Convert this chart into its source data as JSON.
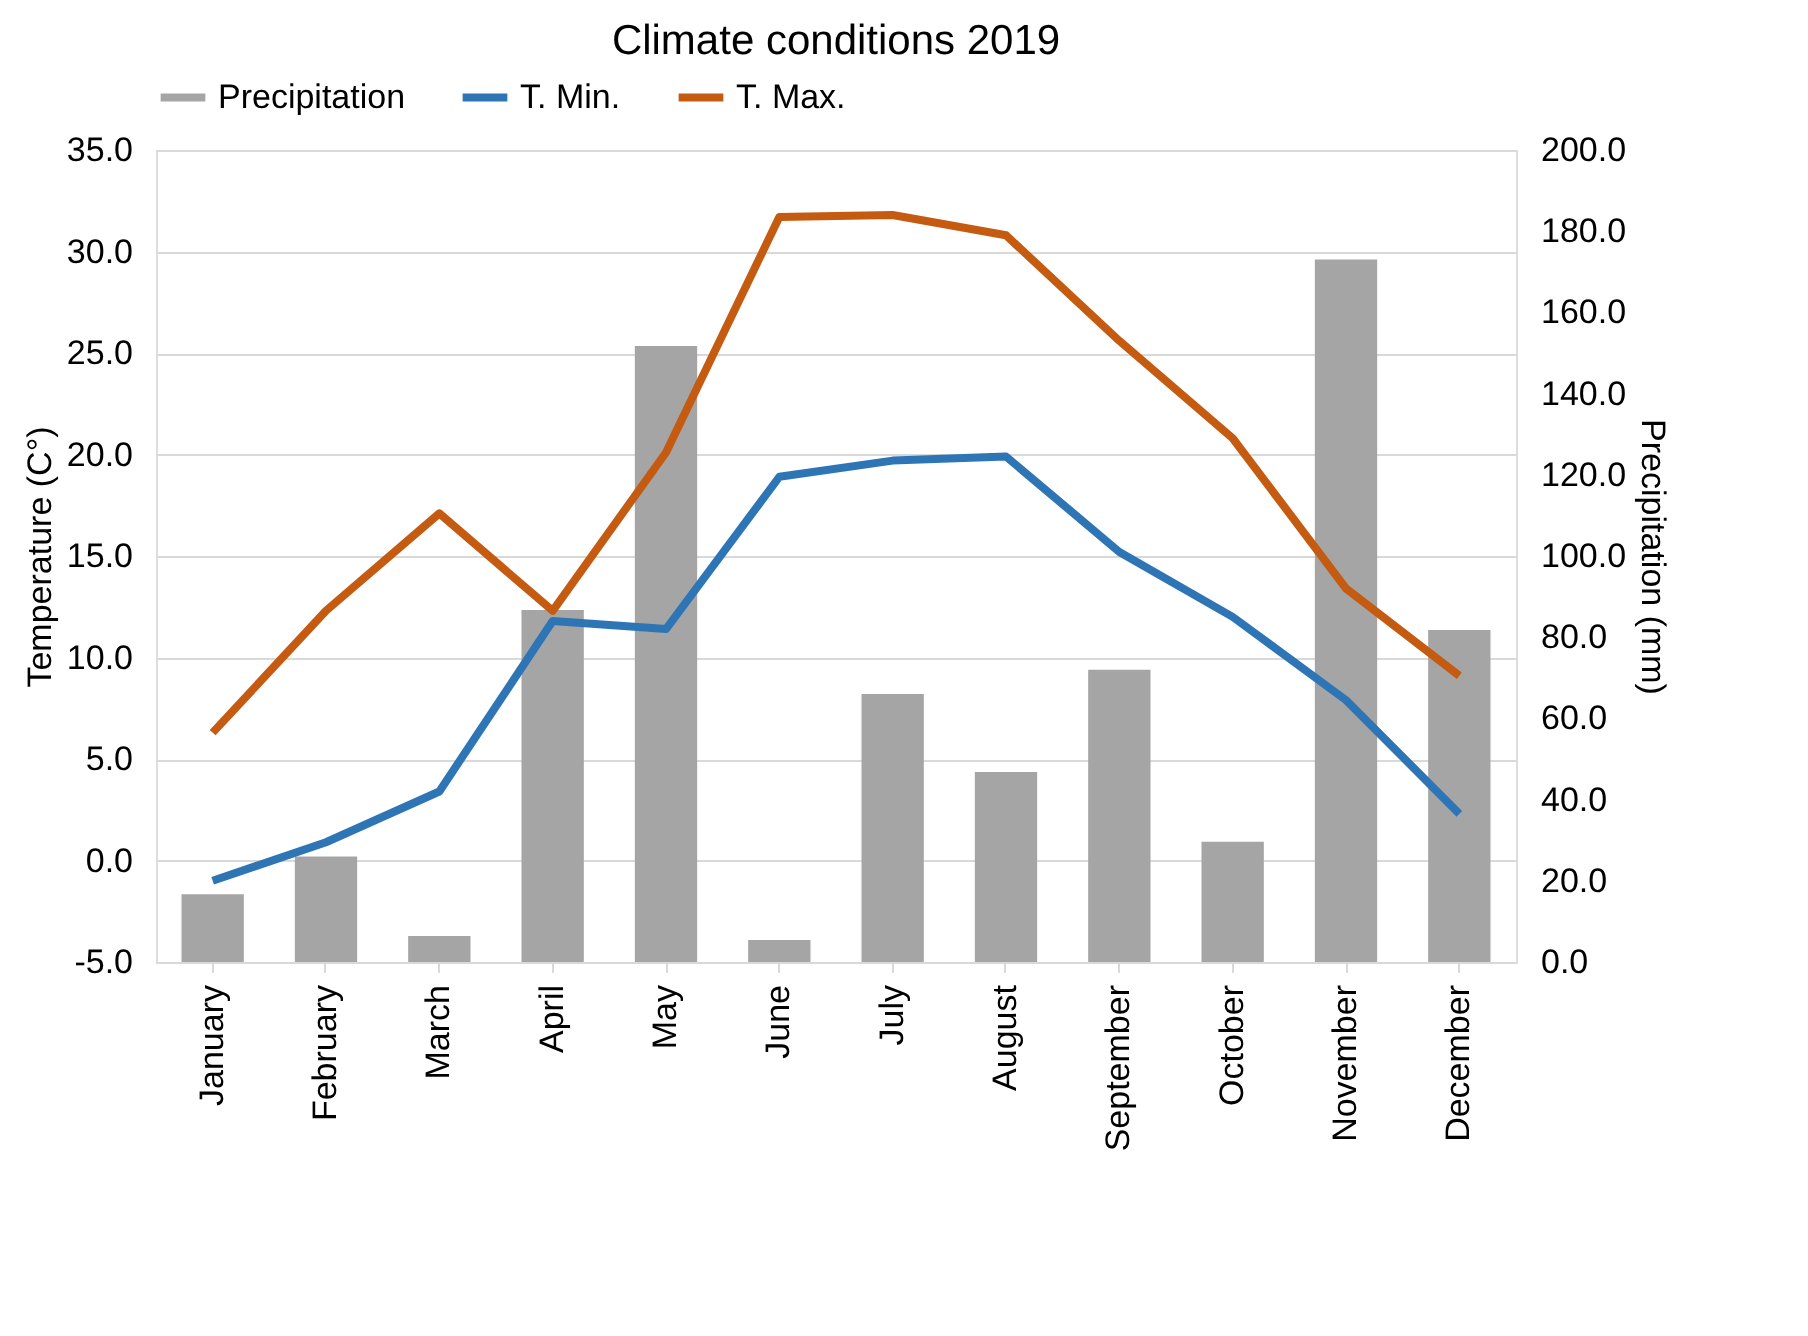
{
  "chart_data": {
    "type": "line",
    "title": "Climate conditions 2019",
    "ylabel": "Temperature (C°)",
    "y2label": "Precipitation (mm)",
    "categories": [
      "January",
      "February",
      "March",
      "April",
      "May",
      "June",
      "July",
      "August",
      "September",
      "October",
      "November",
      "December"
    ],
    "series": [
      {
        "name": "Precipitation",
        "type": "bar",
        "axis": "y2",
        "color": "#a5a5a5",
        "values": [
          16.7,
          26,
          6.4,
          86.7,
          151.7,
          5.4,
          66,
          46.8,
          72,
          29.6,
          173,
          81.8
        ]
      },
      {
        "name": "T. Min.",
        "color": "#2e75b6",
        "values": [
          -1.0,
          0.9,
          3.4,
          11.8,
          11.4,
          18.9,
          19.7,
          19.9,
          15.2,
          12.0,
          7.9,
          2.3
        ]
      },
      {
        "name": "T. Max.",
        "color": "#c55a11",
        "values": [
          6.3,
          12.3,
          17.1,
          12.3,
          20.1,
          31.7,
          31.8,
          30.8,
          25.6,
          20.8,
          13.4,
          9.1
        ]
      }
    ],
    "ylim": [
      -5,
      35
    ],
    "yticks": [
      {
        "value": -5,
        "label": "-5.0"
      },
      {
        "value": 0,
        "label": "0.0"
      },
      {
        "value": 5,
        "label": "5.0"
      },
      {
        "value": 10,
        "label": "10.0"
      },
      {
        "value": 15,
        "label": "15.0"
      },
      {
        "value": 20,
        "label": "20.0"
      },
      {
        "value": 25,
        "label": "25.0"
      },
      {
        "value": 30,
        "label": "30.0"
      },
      {
        "value": 35,
        "label": "35.0"
      }
    ],
    "y2lim": [
      0,
      200
    ],
    "y2ticks": [
      {
        "value": 0,
        "label": "0.0"
      },
      {
        "value": 20,
        "label": "20.0"
      },
      {
        "value": 40,
        "label": "40.0"
      },
      {
        "value": 60,
        "label": "60.0"
      },
      {
        "value": 80,
        "label": "80.0"
      },
      {
        "value": 100,
        "label": "100.0"
      },
      {
        "value": 120,
        "label": "120.0"
      },
      {
        "value": 140,
        "label": "140.0"
      },
      {
        "value": 160,
        "label": "160.0"
      },
      {
        "value": 180,
        "label": "180.0"
      },
      {
        "value": 200,
        "label": "200.0"
      }
    ],
    "grid": "y",
    "legend": "top",
    "marker": "none",
    "line_style": "solid"
  }
}
